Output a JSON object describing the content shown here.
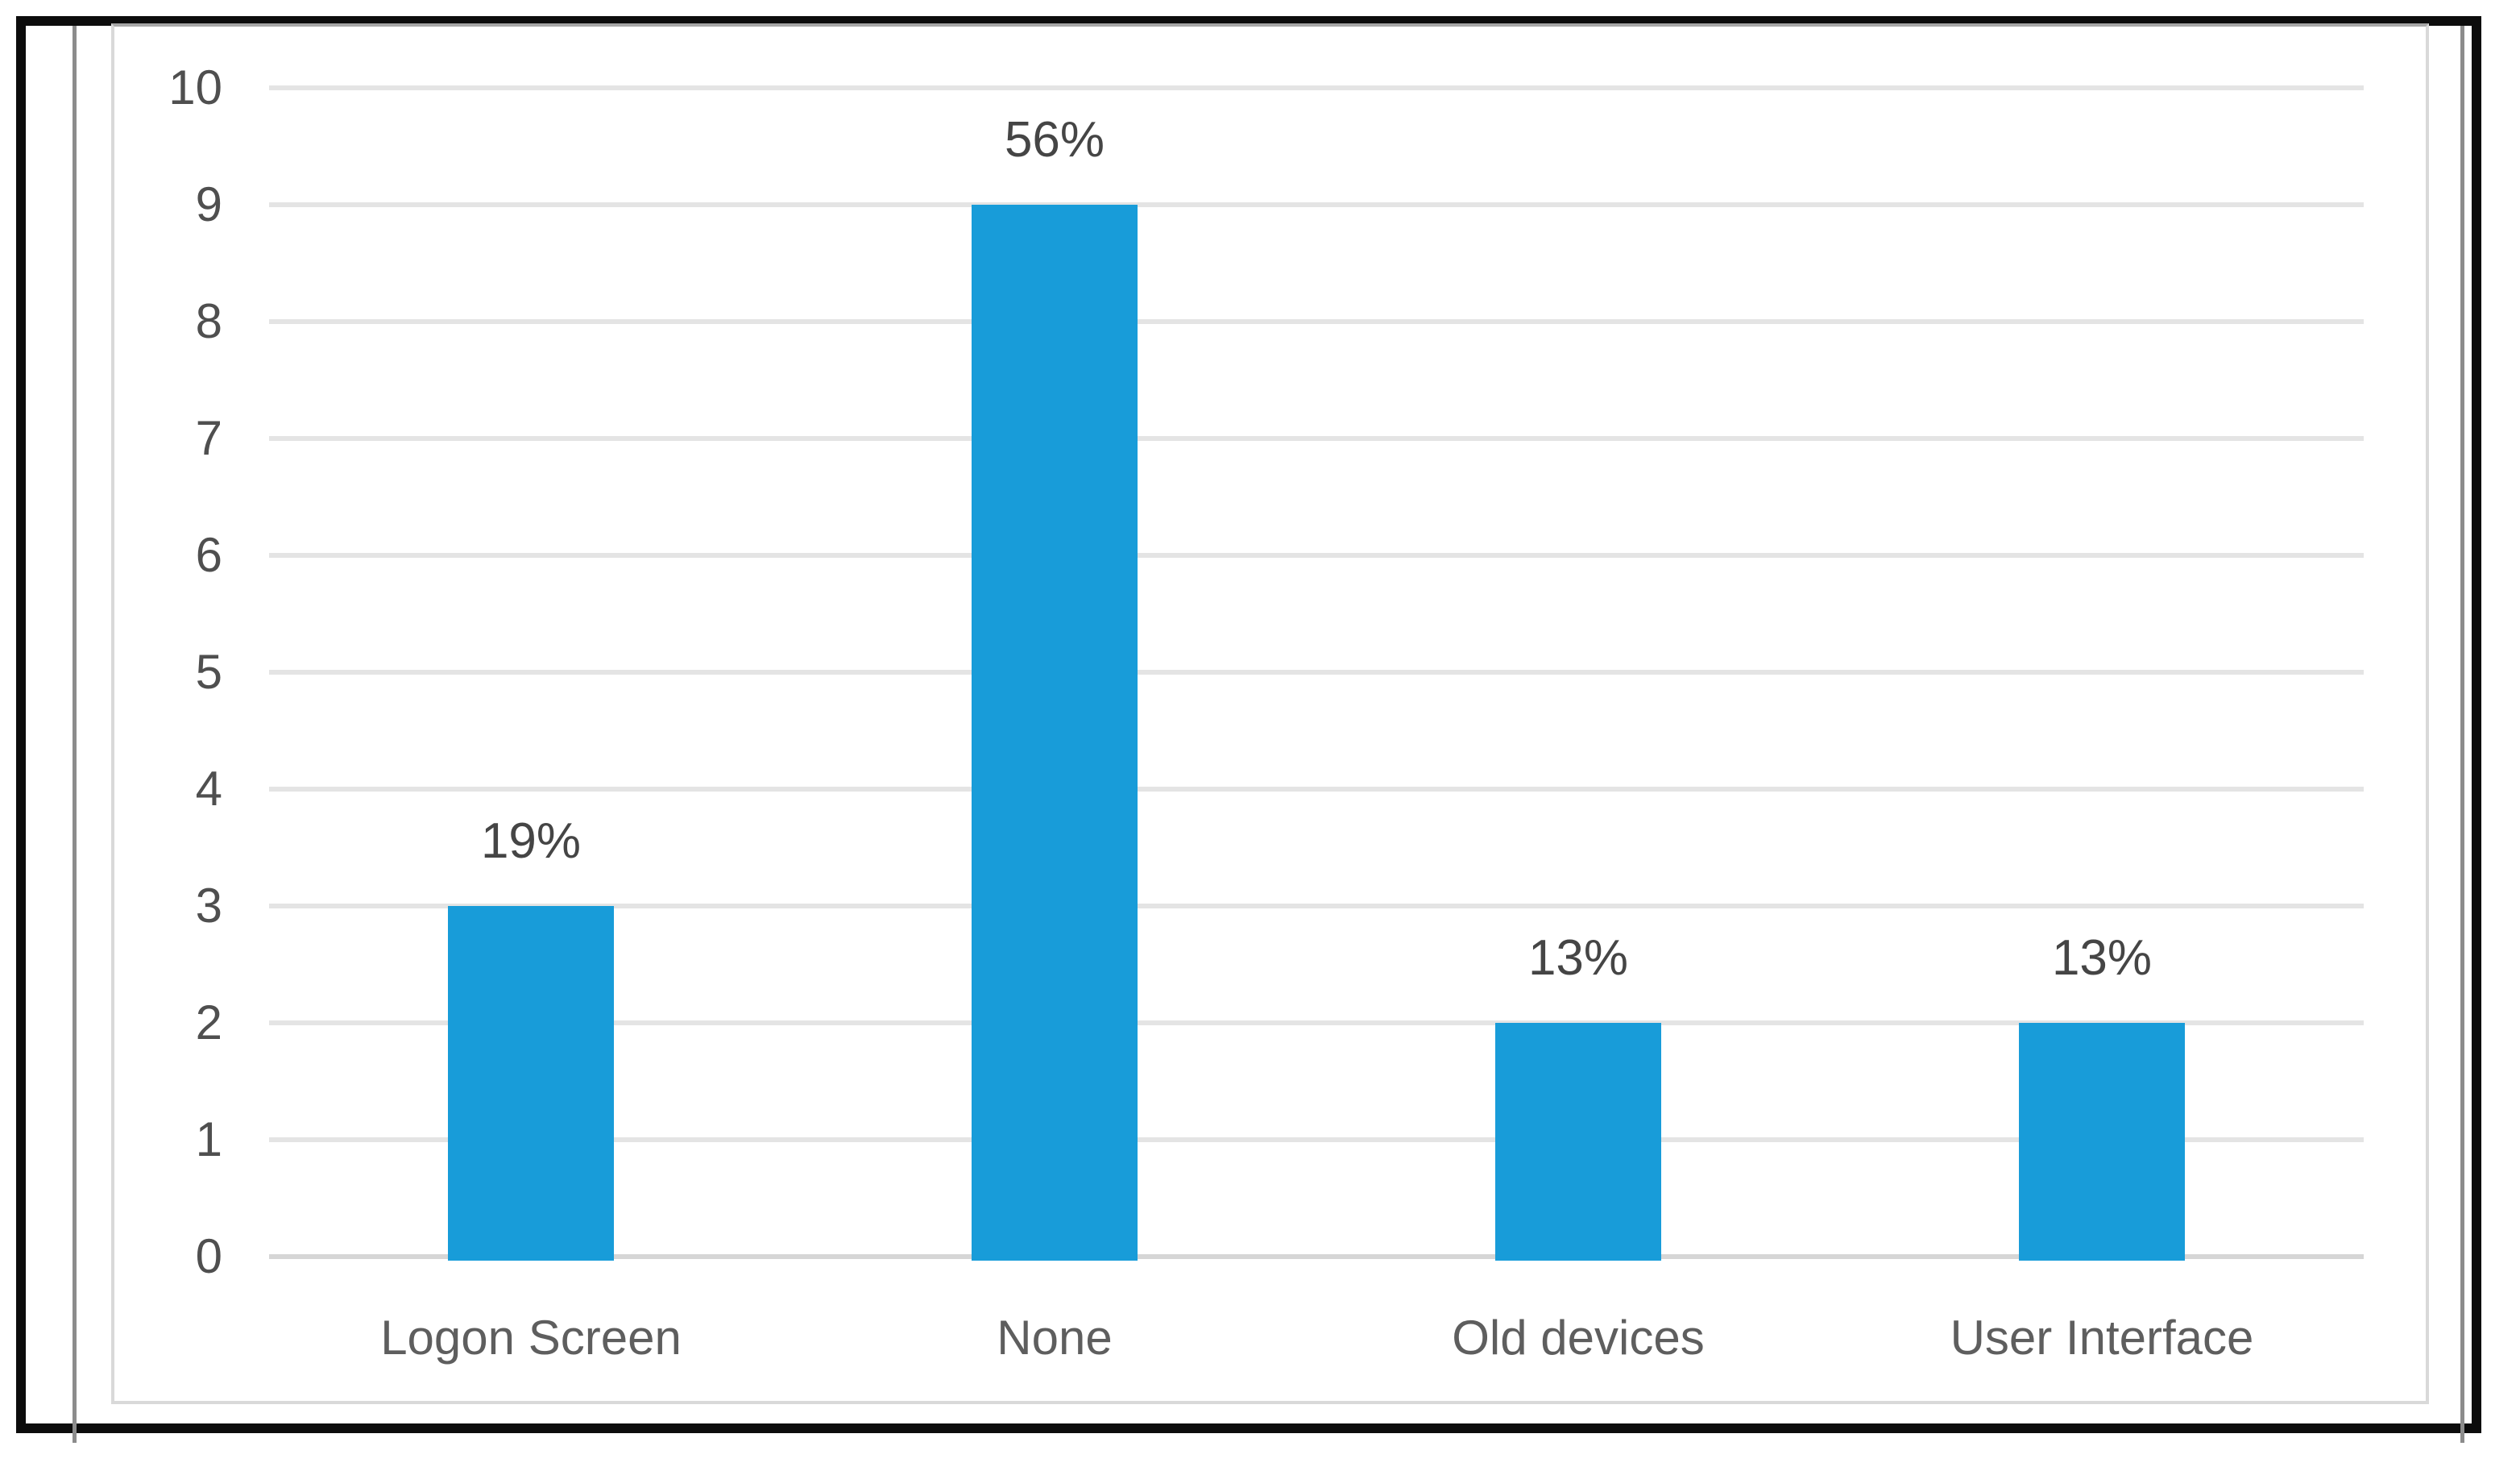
{
  "chart_data": {
    "type": "bar",
    "title": "",
    "xlabel": "",
    "ylabel": "",
    "categories": [
      "Logon Screen",
      "None",
      "Old devices",
      "User Interface"
    ],
    "values": [
      3,
      9,
      2,
      2
    ],
    "data_labels": [
      "19%",
      "56%",
      "13%",
      "13%"
    ],
    "y_ticks": [
      0,
      1,
      2,
      3,
      4,
      5,
      6,
      7,
      8,
      9,
      10
    ],
    "ylim": [
      0,
      10
    ],
    "grid": "horizontal-on",
    "legend": "none",
    "bar_color": "#189cd9"
  },
  "colors": {
    "bar": "#189cd9",
    "gridline": "#e4e4e4",
    "zero_line": "#d6d6d6",
    "tick_label": "#4f4f4f",
    "category_label": "#5e5e5e",
    "value_label": "#454545",
    "chart_border": "#d9d9d9",
    "outer_frame": "#0c0c0c",
    "rule_line": "#8c8c8c"
  }
}
